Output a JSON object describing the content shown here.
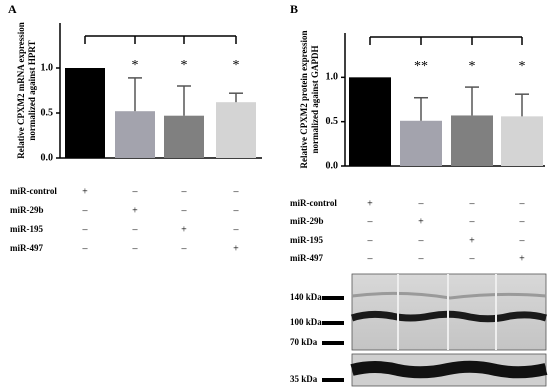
{
  "chart_data": [
    {
      "type": "bar",
      "panel": "A",
      "ylabel": [
        "Relative CPXM2 mRNA expression",
        "normalized against HPRT"
      ],
      "categories": [
        null,
        null,
        null,
        null
      ],
      "values": [
        1.0,
        0.52,
        0.47,
        0.62
      ],
      "errors": [
        0,
        0.37,
        0.33,
        0.1
      ],
      "colors": [
        "#000000",
        "#a3a3ad",
        "#808080",
        "#d4d4d4"
      ],
      "significance": [
        null,
        "*",
        "*",
        "*"
      ],
      "ylim": [
        0,
        1.5
      ],
      "yticks": [
        {
          "value": 0,
          "label": "0.0"
        },
        {
          "value": 0.5,
          "label": "0.5"
        },
        {
          "value": 1,
          "label": "1.0"
        }
      ],
      "treatments": [
        {
          "name": "miR-control",
          "marks": [
            "+",
            "–",
            "–",
            "–"
          ]
        },
        {
          "name": "miR-29b",
          "marks": [
            "–",
            "+",
            "–",
            "–"
          ]
        },
        {
          "name": "miR-195",
          "marks": [
            "–",
            "–",
            "+",
            "–"
          ]
        },
        {
          "name": "miR-497",
          "marks": [
            "–",
            "–",
            "–",
            "+"
          ]
        }
      ]
    },
    {
      "type": "bar",
      "panel": "B",
      "ylabel": [
        "Relative CPXM2 protein expression",
        "normalized against GAPDH"
      ],
      "categories": [
        null,
        null,
        null,
        null
      ],
      "values": [
        1.0,
        0.51,
        0.57,
        0.56
      ],
      "errors": [
        0,
        0.26,
        0.32,
        0.25
      ],
      "colors": [
        "#000000",
        "#a3a3ad",
        "#808080",
        "#d4d4d4"
      ],
      "significance": [
        null,
        "**",
        "*",
        "*"
      ],
      "ylim": [
        0,
        1.5
      ],
      "yticks": [
        {
          "value": 0,
          "label": "0.0"
        },
        {
          "value": 0.5,
          "label": "0.5"
        },
        {
          "value": 1,
          "label": "1.0"
        }
      ],
      "treatments": [
        {
          "name": "miR-control",
          "marks": [
            "+",
            "–",
            "–",
            "–"
          ]
        },
        {
          "name": "miR-29b",
          "marks": [
            "–",
            "+",
            "–",
            "–"
          ]
        },
        {
          "name": "miR-195",
          "marks": [
            "–",
            "–",
            "+",
            "–"
          ]
        },
        {
          "name": "miR-497",
          "marks": [
            "–",
            "–",
            "–",
            "+"
          ]
        }
      ]
    }
  ],
  "blot": {
    "markers": [
      "140 kDa",
      "100 kDa",
      "70 kDa",
      "35 kDa"
    ]
  }
}
